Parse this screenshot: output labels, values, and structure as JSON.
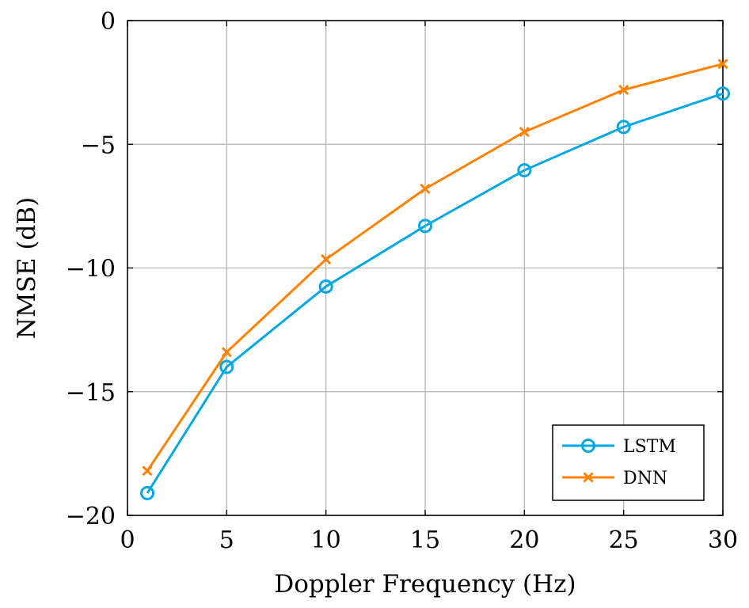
{
  "chart_data": {
    "type": "line",
    "title": "",
    "xlabel": "Doppler Frequency (Hz)",
    "ylabel": "NMSE (dB)",
    "xlim": [
      0,
      30
    ],
    "ylim": [
      -20,
      0
    ],
    "xticks": [
      0,
      5,
      10,
      15,
      20,
      25,
      30
    ],
    "yticks": [
      0,
      -5,
      -10,
      -15,
      -20
    ],
    "xtick_labels": [
      "0",
      "5",
      "10",
      "15",
      "20",
      "25",
      "30"
    ],
    "ytick_labels": [
      "0",
      "−5",
      "−10",
      "−15",
      "−20"
    ],
    "grid": true,
    "legend_position": "bottom-right",
    "x": [
      1,
      5,
      10,
      15,
      20,
      25,
      30
    ],
    "series": [
      {
        "name": "LSTM",
        "color": "#00a8e1",
        "marker": "circle",
        "values": [
          -19.1,
          -14.0,
          -10.75,
          -8.3,
          -6.05,
          -4.3,
          -2.95
        ]
      },
      {
        "name": "DNN",
        "color": "#ff8200",
        "marker": "x",
        "values": [
          -18.2,
          -13.4,
          -9.65,
          -6.8,
          -4.5,
          -2.8,
          -1.75
        ]
      }
    ]
  }
}
